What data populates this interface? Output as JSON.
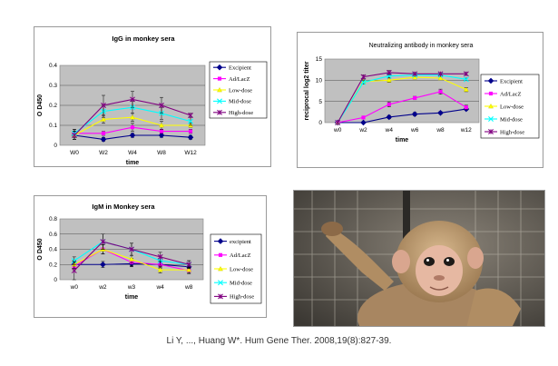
{
  "chart_data": [
    {
      "id": "igg",
      "type": "line",
      "title": "IgG in monkey sera",
      "xlabel": "time",
      "ylabel": "O D450",
      "categories": [
        "W0",
        "W2",
        "W4",
        "W8",
        "W12"
      ],
      "ylim": [
        0,
        0.4
      ],
      "yticks": [
        "0",
        "0.1",
        "0.2",
        "0.3",
        "0.4"
      ],
      "series": [
        {
          "name": "Excipient",
          "color": "#00008B",
          "marker": "diamond",
          "values": [
            0.05,
            0.03,
            0.05,
            0.05,
            0.04
          ],
          "errors": [
            0.02,
            0.01,
            0.01,
            0.01,
            0.01
          ]
        },
        {
          "name": "Ad/LacZ",
          "color": "#FF00FF",
          "marker": "square",
          "values": [
            0.06,
            0.06,
            0.09,
            0.07,
            0.07
          ],
          "errors": [
            0.02,
            0.01,
            0.02,
            0.01,
            0.01
          ]
        },
        {
          "name": "Low-dose",
          "color": "#FFFF00",
          "marker": "triangle",
          "values": [
            0.05,
            0.13,
            0.14,
            0.1,
            0.1
          ],
          "errors": [
            0.02,
            0.02,
            0.02,
            0.02,
            0.01
          ]
        },
        {
          "name": "Mid-dose",
          "color": "#00FFFF",
          "marker": "x",
          "values": [
            0.06,
            0.17,
            0.19,
            0.16,
            0.12
          ],
          "errors": [
            0.02,
            0.03,
            0.03,
            0.03,
            0.02
          ]
        },
        {
          "name": "High-dose",
          "color": "#800080",
          "marker": "star",
          "values": [
            0.05,
            0.2,
            0.23,
            0.2,
            0.15
          ],
          "errors": [
            0.02,
            0.05,
            0.04,
            0.04,
            0.01
          ]
        }
      ]
    },
    {
      "id": "nab",
      "type": "line",
      "title": "Neutralizing antibody in monkey sera",
      "xlabel": "time",
      "ylabel": "reciprocal log2 titer",
      "categories": [
        "w0",
        "w2",
        "w4",
        "w6",
        "w8",
        "w12"
      ],
      "ylim": [
        0,
        15
      ],
      "yticks": [
        "0",
        "5",
        "10",
        "15"
      ],
      "series": [
        {
          "name": "Excipient",
          "color": "#00008B",
          "marker": "diamond",
          "values": [
            0,
            0,
            1.3,
            2,
            2.3,
            3.2
          ],
          "errors": [
            0,
            0,
            0.4,
            0.4,
            0.3,
            0.3
          ]
        },
        {
          "name": "Ad/LacZ",
          "color": "#FF00FF",
          "marker": "square",
          "values": [
            0,
            1.2,
            4.3,
            5.8,
            7.3,
            3.6
          ],
          "errors": [
            0,
            0.3,
            0.6,
            0.4,
            0.6,
            0.5
          ]
        },
        {
          "name": "Low-dose",
          "color": "#FFFF00",
          "marker": "triangle",
          "values": [
            0,
            9.7,
            10,
            10.7,
            10.5,
            7.8
          ],
          "errors": [
            0,
            0.4,
            0.5,
            0.4,
            0.4,
            0.5
          ]
        },
        {
          "name": "Mid-dose",
          "color": "#00FFFF",
          "marker": "x",
          "values": [
            0,
            9.5,
            11,
            11.2,
            11.2,
            10.2
          ],
          "errors": [
            0,
            0.4,
            0.4,
            0.3,
            0.3,
            0.3
          ]
        },
        {
          "name": "High-dose",
          "color": "#800080",
          "marker": "star",
          "values": [
            0,
            10.8,
            11.8,
            11.5,
            11.5,
            11.5
          ],
          "errors": [
            0,
            0.4,
            0.5,
            0.3,
            0.3,
            0.3
          ]
        }
      ]
    },
    {
      "id": "igm",
      "type": "line",
      "title": "IgM in Monkey sera",
      "xlabel": "time",
      "ylabel": "O D450",
      "categories": [
        "w0",
        "w2",
        "w3",
        "w4",
        "w8"
      ],
      "ylim": [
        0,
        0.8
      ],
      "yticks": [
        "0",
        "0.2",
        "0.4",
        "0.6",
        "0.8"
      ],
      "series": [
        {
          "name": "excipient",
          "color": "#00008B",
          "marker": "diamond",
          "values": [
            0.2,
            0.2,
            0.21,
            0.2,
            0.17
          ],
          "errors": [
            0.05,
            0.04,
            0.04,
            0.04,
            0.04
          ]
        },
        {
          "name": "Ad/LacZ",
          "color": "#FF00FF",
          "marker": "square",
          "values": [
            0.18,
            0.4,
            0.23,
            0.2,
            0.12
          ],
          "errors": [
            0.05,
            0.06,
            0.05,
            0.05,
            0.04
          ]
        },
        {
          "name": "Low-dose",
          "color": "#FFFF00",
          "marker": "triangle",
          "values": [
            0.2,
            0.4,
            0.27,
            0.13,
            0.13
          ],
          "errors": [
            0.05,
            0.06,
            0.05,
            0.04,
            0.04
          ]
        },
        {
          "name": "Mid-dose",
          "color": "#00FFFF",
          "marker": "x",
          "values": [
            0.25,
            0.5,
            0.4,
            0.25,
            0.2
          ],
          "errors": [
            0.05,
            0.1,
            0.08,
            0.06,
            0.05
          ]
        },
        {
          "name": "High-dose",
          "color": "#800080",
          "marker": "star",
          "values": [
            0.12,
            0.5,
            0.4,
            0.3,
            0.2
          ],
          "errors": [
            0.12,
            0.1,
            0.08,
            0.06,
            0.05
          ]
        }
      ]
    }
  ],
  "citation": "Li Y, ..., Huang W*. Hum Gene Ther. 2008,19(8):827-39."
}
